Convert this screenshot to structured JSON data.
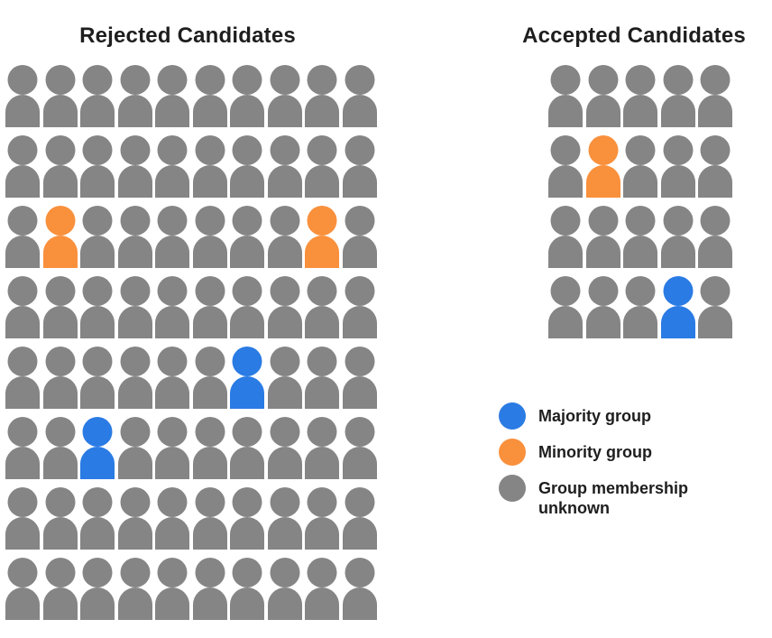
{
  "colors": {
    "majority": "#2A7BE4",
    "minority": "#F9903C",
    "unknown": "#858585"
  },
  "cell_codes": {
    "g": "unknown",
    "o": "minority",
    "b": "majority"
  },
  "legend": {
    "items": [
      {
        "group": "majority",
        "label": "Majority group"
      },
      {
        "group": "minority",
        "label": "Minority group"
      },
      {
        "group": "unknown",
        "label": "Group membership unknown"
      }
    ]
  },
  "chart_data": [
    {
      "type": "pictograph",
      "id": "rejected",
      "title": "Rejected Candidates",
      "columns": 10,
      "rows": 8,
      "total_people": 80,
      "counts": {
        "majority": 2,
        "minority": 2,
        "unknown": 76
      },
      "highlighted_cells": [
        {
          "row": 3,
          "col": 2,
          "group": "minority"
        },
        {
          "row": 3,
          "col": 9,
          "group": "minority"
        },
        {
          "row": 5,
          "col": 7,
          "group": "majority"
        },
        {
          "row": 6,
          "col": 3,
          "group": "majority"
        }
      ],
      "grid": [
        "gggggggggg",
        "gggggggggg",
        "goggggggog",
        "gggggggggg",
        "ggggggbggg",
        "ggbggggggg",
        "gggggggggg",
        "gggggggggg"
      ]
    },
    {
      "type": "pictograph",
      "id": "accepted",
      "title": "Accepted Candidates",
      "columns": 5,
      "rows": 4,
      "total_people": 20,
      "counts": {
        "majority": 1,
        "minority": 1,
        "unknown": 18
      },
      "highlighted_cells": [
        {
          "row": 2,
          "col": 2,
          "group": "minority"
        },
        {
          "row": 4,
          "col": 4,
          "group": "majority"
        }
      ],
      "grid": [
        "ggggg",
        "goggg",
        "ggggg",
        "gggbg"
      ]
    }
  ]
}
